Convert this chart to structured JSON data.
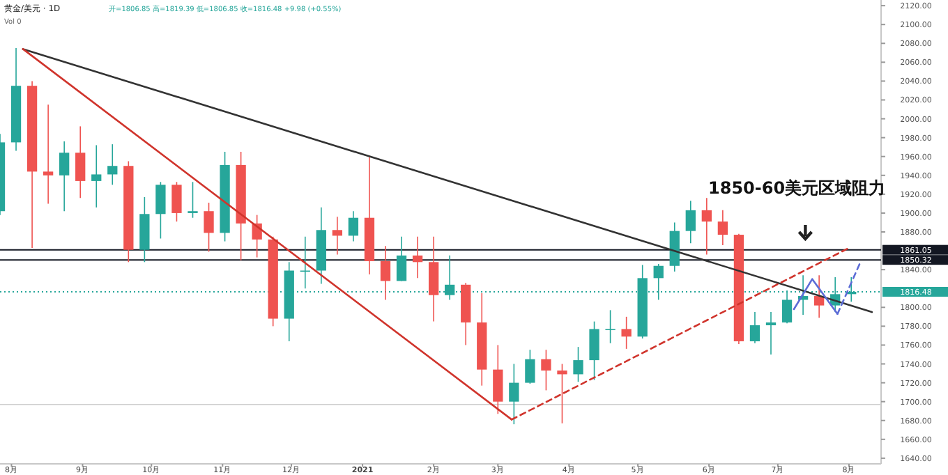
{
  "chart_data": {
    "type": "candlestick",
    "title": "黄金/美元 · 1D",
    "subtitle": "开=1806.85 高=1819.39 低=1806.85 收=1816.48 +9.98 (+0.55%)",
    "annotations": [
      "Vol 0",
      "1850-60美元区域阻力"
    ],
    "x": [
      "2020-07-27",
      "2020-08-03",
      "2020-08-10",
      "2020-08-17",
      "2020-08-24",
      "2020-08-31",
      "2020-09-07",
      "2020-09-14",
      "2020-09-21",
      "2020-09-28",
      "2020-10-05",
      "2020-10-12",
      "2020-10-19",
      "2020-10-26",
      "2020-11-02",
      "2020-11-09",
      "2020-11-16",
      "2020-11-23",
      "2020-11-30",
      "2020-12-07",
      "2020-12-14",
      "2020-12-21",
      "2020-12-28",
      "2021-01-04",
      "2021-01-11",
      "2021-01-18",
      "2021-01-25",
      "2021-02-01",
      "2021-02-08",
      "2021-02-15",
      "2021-02-22",
      "2021-03-01",
      "2021-03-08",
      "2021-03-15",
      "2021-03-22",
      "2021-03-29",
      "2021-04-05",
      "2021-04-12",
      "2021-04-19",
      "2021-04-26",
      "2021-05-03",
      "2021-05-10",
      "2021-05-17",
      "2021-05-24",
      "2021-05-31",
      "2021-06-07",
      "2021-06-14",
      "2021-06-21",
      "2021-06-28",
      "2021-07-05",
      "2021-07-12",
      "2021-07-19",
      "2021-07-26",
      "2021-08-02"
    ],
    "ohlc": [
      [
        1902,
        1984,
        1898,
        1975
      ],
      [
        1975,
        2075,
        1966,
        2035
      ],
      [
        2035,
        2040,
        1863,
        1944
      ],
      [
        1944,
        2015,
        1910,
        1940
      ],
      [
        1940,
        1976,
        1902,
        1964
      ],
      [
        1964,
        1992,
        1916,
        1934
      ],
      [
        1934,
        1972,
        1906,
        1941
      ],
      [
        1941,
        1973,
        1930,
        1950
      ],
      [
        1950,
        1955,
        1848,
        1861
      ],
      [
        1861,
        1917,
        1848,
        1899
      ],
      [
        1899,
        1933,
        1873,
        1930
      ],
      [
        1930,
        1933,
        1891,
        1900
      ],
      [
        1900,
        1933,
        1895,
        1902
      ],
      [
        1902,
        1911,
        1859,
        1879
      ],
      [
        1879,
        1965,
        1870,
        1951
      ],
      [
        1951,
        1965,
        1850,
        1889
      ],
      [
        1889,
        1898,
        1853,
        1872
      ],
      [
        1872,
        1875,
        1780,
        1788
      ],
      [
        1788,
        1848,
        1764,
        1839
      ],
      [
        1839,
        1875,
        1820,
        1839
      ],
      [
        1839,
        1906,
        1825,
        1882
      ],
      [
        1882,
        1896,
        1856,
        1876
      ],
      [
        1876,
        1902,
        1870,
        1895
      ],
      [
        1895,
        1959,
        1835,
        1849
      ],
      [
        1849,
        1865,
        1808,
        1828
      ],
      [
        1828,
        1875,
        1828,
        1855
      ],
      [
        1855,
        1875,
        1831,
        1848
      ],
      [
        1848,
        1875,
        1785,
        1813
      ],
      [
        1813,
        1855,
        1808,
        1824
      ],
      [
        1824,
        1826,
        1760,
        1784
      ],
      [
        1784,
        1815,
        1717,
        1734
      ],
      [
        1734,
        1760,
        1687,
        1700
      ],
      [
        1700,
        1740,
        1676,
        1720
      ],
      [
        1720,
        1755,
        1719,
        1745
      ],
      [
        1745,
        1755,
        1712,
        1733
      ],
      [
        1733,
        1740,
        1677,
        1729
      ],
      [
        1729,
        1758,
        1721,
        1744
      ],
      [
        1744,
        1785,
        1723,
        1777
      ],
      [
        1777,
        1797,
        1762,
        1777
      ],
      [
        1777,
        1790,
        1756,
        1769
      ],
      [
        1769,
        1845,
        1767,
        1831
      ],
      [
        1831,
        1846,
        1808,
        1844
      ],
      [
        1844,
        1890,
        1838,
        1881
      ],
      [
        1881,
        1913,
        1868,
        1903
      ],
      [
        1903,
        1916,
        1856,
        1891
      ],
      [
        1891,
        1903,
        1866,
        1877
      ],
      [
        1877,
        1878,
        1761,
        1764
      ],
      [
        1764,
        1795,
        1762,
        1781
      ],
      [
        1781,
        1795,
        1750,
        1784
      ],
      [
        1784,
        1818,
        1783,
        1808
      ],
      [
        1808,
        1834,
        1792,
        1812
      ],
      [
        1812,
        1834,
        1789,
        1802
      ],
      [
        1802,
        1832,
        1795,
        1814
      ],
      [
        1814,
        1832,
        1806,
        1816.48
      ]
    ],
    "colors": [
      "#26a69a",
      "#26a69a",
      "#ef5350",
      "#ef5350",
      "#26a69a",
      "#ef5350",
      "#26a69a",
      "#26a69a",
      "#ef5350",
      "#26a69a",
      "#26a69a",
      "#ef5350",
      "#26a69a",
      "#ef5350",
      "#26a69a",
      "#ef5350",
      "#ef5350",
      "#ef5350",
      "#26a69a",
      "#26a69a",
      "#26a69a",
      "#ef5350",
      "#26a69a",
      "#ef5350",
      "#ef5350",
      "#26a69a",
      "#ef5350",
      "#ef5350",
      "#26a69a",
      "#ef5350",
      "#ef5350",
      "#ef5350",
      "#26a69a",
      "#26a69a",
      "#ef5350",
      "#ef5350",
      "#26a69a",
      "#26a69a",
      "#26a69a",
      "#ef5350",
      "#26a69a",
      "#26a69a",
      "#26a69a",
      "#26a69a",
      "#ef5350",
      "#ef5350",
      "#ef5350",
      "#26a69a",
      "#26a69a",
      "#26a69a",
      "#26a69a",
      "#ef5350",
      "#26a69a",
      "#26a69a"
    ],
    "series": [
      {
        "type": "line",
        "color": "#333333",
        "x": [
          "2020-08-06",
          "2021-08-11"
        ],
        "values": [
          2074,
          1795
        ]
      },
      {
        "type": "line",
        "color": "#d0342c",
        "x": [
          "2020-08-06",
          "2021-03-07"
        ],
        "values": [
          2074,
          1681
        ]
      },
      {
        "type": "line",
        "color": "#d0342c",
        "line_style": "dashed",
        "x": [
          "2021-03-07",
          "2021-08-01"
        ],
        "values": [
          1681,
          1863
        ]
      },
      {
        "type": "line",
        "color": "#5b6bd6",
        "x": [
          "2021-07-08",
          "2021-07-16",
          "2021-07-27"
        ],
        "values": [
          1798,
          1830,
          1793
        ]
      },
      {
        "type": "line",
        "color": "#5b6bd6",
        "line_style": "dashed",
        "x": [
          "2021-07-27",
          "2021-08-06"
        ],
        "values": [
          1793,
          1848
        ]
      }
    ],
    "ref_lines": [
      {
        "axis": "y",
        "value": 1861.05,
        "label": "1861.05",
        "color": "#131722"
      },
      {
        "axis": "y",
        "value": 1850.32,
        "label": "1850.32",
        "color": "#131722"
      },
      {
        "axis": "y",
        "value": 1816.48,
        "label": "1816.48",
        "color": "#26a69a",
        "line_style": "dotted"
      },
      {
        "axis": "y",
        "value": 1697,
        "label": null,
        "color": "#cfcfcf"
      }
    ],
    "xlim": [
      "2020-07-27",
      "2021-08-15"
    ],
    "xticks": [
      {
        "value": "2020-08-01",
        "label": "8月"
      },
      {
        "value": "2020-09-01",
        "label": "9月"
      },
      {
        "value": "2020-10-01",
        "label": "10月"
      },
      {
        "value": "2020-11-01",
        "label": "11月"
      },
      {
        "value": "2020-12-01",
        "label": "12月"
      },
      {
        "value": "2021-01-01",
        "label": "2021"
      },
      {
        "value": "2021-02-01",
        "label": "2月"
      },
      {
        "value": "2021-03-01",
        "label": "3月"
      },
      {
        "value": "2021-04-01",
        "label": "4月"
      },
      {
        "value": "2021-05-01",
        "label": "5月"
      },
      {
        "value": "2021-06-01",
        "label": "6月"
      },
      {
        "value": "2021-07-01",
        "label": "7月"
      },
      {
        "value": "2021-08-01",
        "label": "8月"
      }
    ],
    "ylim": [
      1634,
      2126
    ],
    "yticks": [
      {
        "value": 1640,
        "label": "1640.00"
      },
      {
        "value": 1660,
        "label": "1660.00"
      },
      {
        "value": 1680,
        "label": "1680.00"
      },
      {
        "value": 1700,
        "label": "1700.00"
      },
      {
        "value": 1720,
        "label": "1720.00"
      },
      {
        "value": 1740,
        "label": "1740.00"
      },
      {
        "value": 1760,
        "label": "1760.00"
      },
      {
        "value": 1780,
        "label": "1780.00"
      },
      {
        "value": 1800,
        "label": "1800.00"
      },
      {
        "value": 1840,
        "label": "1840.00"
      },
      {
        "value": 1880,
        "label": "1880.00"
      },
      {
        "value": 1900,
        "label": "1900.00"
      },
      {
        "value": 1920,
        "label": "1920.00"
      },
      {
        "value": 1940,
        "label": "1940.00"
      },
      {
        "value": 1960,
        "label": "1960.00"
      },
      {
        "value": 1980,
        "label": "1980.00"
      },
      {
        "value": 2000,
        "label": "2000.00"
      },
      {
        "value": 2020,
        "label": "2020.00"
      },
      {
        "value": 2040,
        "label": "2040.00"
      },
      {
        "value": 2060,
        "label": "2060.00"
      },
      {
        "value": 2080,
        "label": "2080.00"
      },
      {
        "value": 2100,
        "label": "2100.00"
      },
      {
        "value": 2120,
        "label": "2120.00"
      }
    ],
    "grid": false
  }
}
